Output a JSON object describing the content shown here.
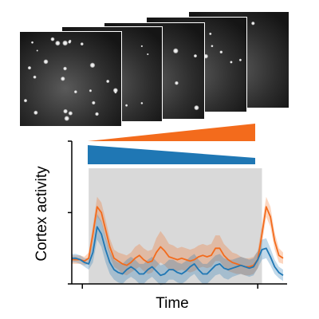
{
  "figure": {
    "x_axis_title": "Time",
    "y_axis_title": "Cortex activity"
  },
  "colors": {
    "orange": "#f36b1c",
    "blue": "#1f77b4",
    "stimulus_shade": "#d9d9d9"
  },
  "icons": {
    "imaging_frames": "two-photon-microscopy-frames",
    "increasing_ramp": "ramp-up-wedge",
    "decreasing_ramp": "ramp-down-wedge"
  },
  "chart_data": {
    "type": "line",
    "xlabel": "Time",
    "ylabel": "Cortex activity",
    "xlim": [
      0,
      100
    ],
    "ylim": [
      0,
      1
    ],
    "x_ticks": [
      5,
      88
    ],
    "y_ticks": [
      0,
      0.5,
      1
    ],
    "stimulus_window": [
      8,
      90
    ],
    "x": [
      0,
      2,
      4,
      6,
      8,
      10,
      12,
      14,
      16,
      18,
      20,
      22,
      24,
      26,
      28,
      30,
      32,
      34,
      36,
      38,
      40,
      42,
      44,
      46,
      48,
      50,
      52,
      54,
      56,
      58,
      60,
      62,
      64,
      66,
      68,
      70,
      72,
      74,
      76,
      78,
      80,
      82,
      84,
      86,
      88,
      90,
      92,
      94,
      96,
      98,
      100
    ],
    "series": [
      {
        "color": "orange",
        "values": [
          0.17,
          0.17,
          0.17,
          0.16,
          0.18,
          0.35,
          0.54,
          0.5,
          0.38,
          0.26,
          0.18,
          0.16,
          0.14,
          0.13,
          0.15,
          0.18,
          0.2,
          0.17,
          0.15,
          0.16,
          0.22,
          0.26,
          0.23,
          0.19,
          0.18,
          0.17,
          0.18,
          0.17,
          0.16,
          0.17,
          0.19,
          0.2,
          0.19,
          0.2,
          0.25,
          0.25,
          0.2,
          0.17,
          0.15,
          0.14,
          0.13,
          0.12,
          0.12,
          0.13,
          0.17,
          0.35,
          0.54,
          0.47,
          0.3,
          0.2,
          0.18
        ],
        "band": [
          0.03,
          0.03,
          0.03,
          0.03,
          0.04,
          0.06,
          0.07,
          0.07,
          0.07,
          0.06,
          0.06,
          0.06,
          0.07,
          0.07,
          0.07,
          0.08,
          0.08,
          0.08,
          0.08,
          0.08,
          0.1,
          0.11,
          0.1,
          0.09,
          0.09,
          0.08,
          0.08,
          0.08,
          0.08,
          0.08,
          0.08,
          0.08,
          0.08,
          0.08,
          0.09,
          0.09,
          0.08,
          0.08,
          0.07,
          0.07,
          0.06,
          0.06,
          0.06,
          0.06,
          0.06,
          0.07,
          0.07,
          0.07,
          0.06,
          0.05,
          0.04
        ]
      },
      {
        "color": "blue",
        "values": [
          0.18,
          0.18,
          0.17,
          0.15,
          0.14,
          0.22,
          0.4,
          0.35,
          0.24,
          0.15,
          0.1,
          0.08,
          0.07,
          0.1,
          0.12,
          0.1,
          0.07,
          0.07,
          0.1,
          0.12,
          0.09,
          0.06,
          0.07,
          0.1,
          0.1,
          0.08,
          0.07,
          0.09,
          0.12,
          0.14,
          0.1,
          0.07,
          0.07,
          0.1,
          0.13,
          0.14,
          0.11,
          0.1,
          0.11,
          0.12,
          0.13,
          0.12,
          0.11,
          0.12,
          0.17,
          0.24,
          0.25,
          0.19,
          0.12,
          0.08,
          0.06
        ],
        "band": [
          0.03,
          0.03,
          0.03,
          0.03,
          0.04,
          0.07,
          0.09,
          0.09,
          0.09,
          0.08,
          0.07,
          0.07,
          0.07,
          0.07,
          0.07,
          0.07,
          0.07,
          0.07,
          0.07,
          0.07,
          0.07,
          0.07,
          0.07,
          0.07,
          0.07,
          0.07,
          0.07,
          0.07,
          0.07,
          0.07,
          0.07,
          0.07,
          0.07,
          0.07,
          0.07,
          0.07,
          0.07,
          0.07,
          0.06,
          0.06,
          0.06,
          0.06,
          0.06,
          0.06,
          0.06,
          0.07,
          0.07,
          0.06,
          0.05,
          0.04,
          0.04
        ]
      }
    ]
  }
}
